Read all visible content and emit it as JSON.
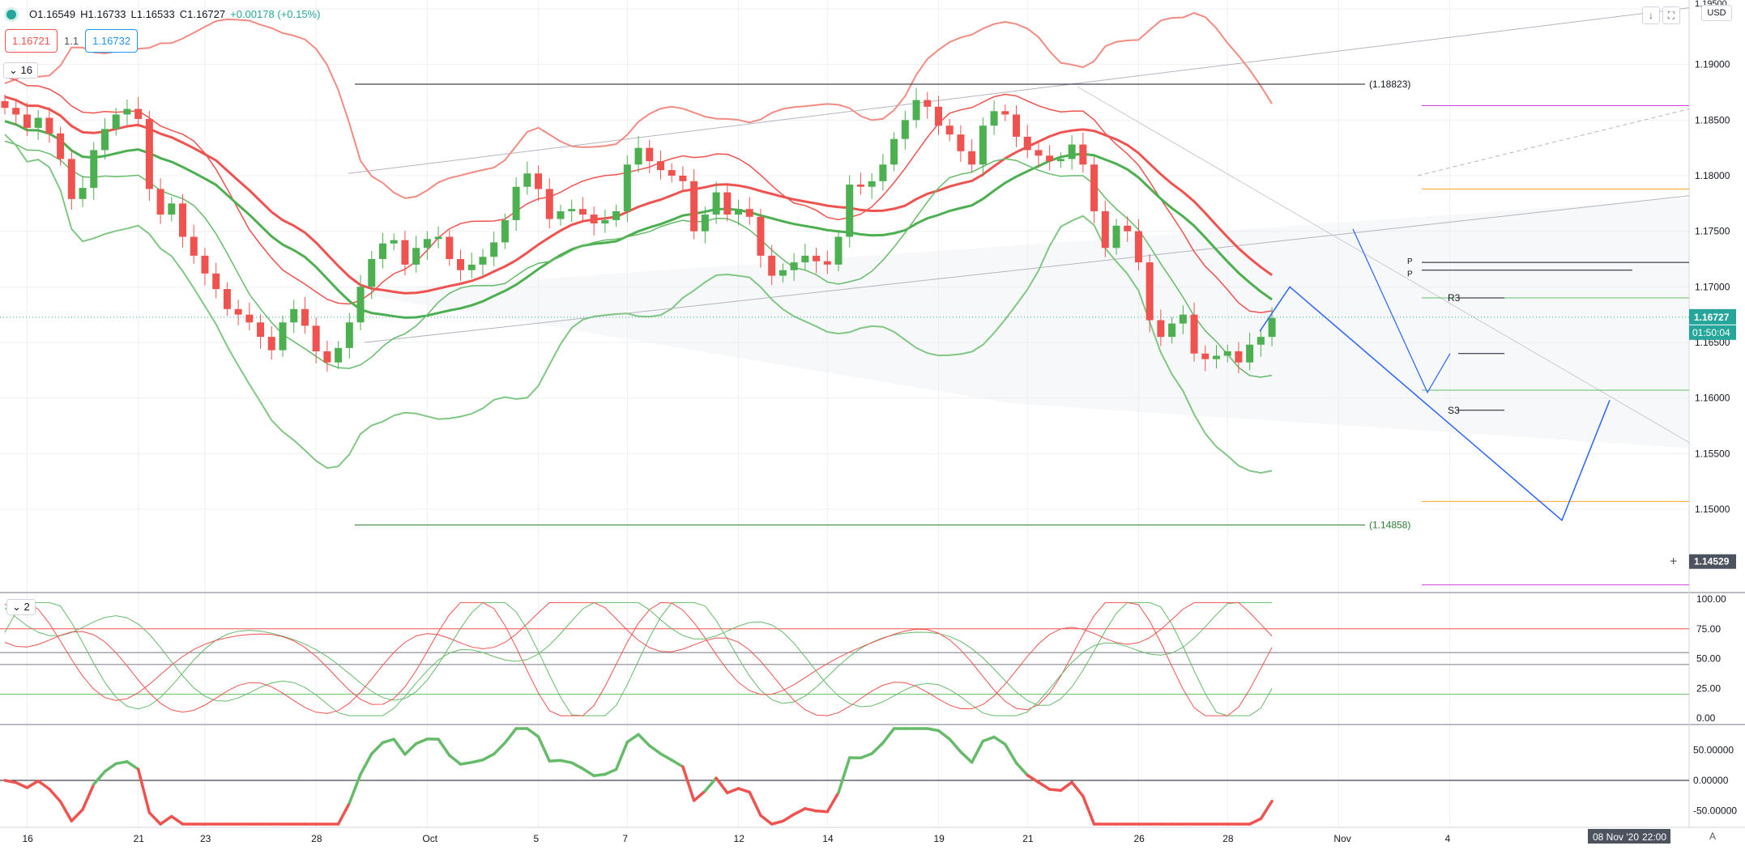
{
  "header": {
    "ohlc_open": "O1.16549",
    "ohlc_high": "H1.16733",
    "ohlc_low": "L1.16533",
    "ohlc_close": "C1.16727",
    "ohlc_change": "+0.00178 (+0.15%)",
    "sell_price": "1.16721",
    "spread": "1.1",
    "buy_price": "1.16732",
    "studies_count": "16",
    "oscillator_count": "2",
    "currency": "USD",
    "auto": "A"
  },
  "chart_data": {
    "type": "line",
    "symbol_quote": "USD",
    "price_axis": {
      "ticks": [
        "1.19500",
        "1.19000",
        "1.18500",
        "1.18000",
        "1.17500",
        "1.17000",
        "1.16500",
        "1.16000",
        "1.15500",
        "1.15000"
      ],
      "tick_values": [
        1.195,
        1.19,
        1.185,
        1.18,
        1.175,
        1.17,
        1.165,
        1.16,
        1.155,
        1.15
      ],
      "ylim": [
        1.1425,
        1.1958
      ]
    },
    "time_axis": {
      "labels": [
        "16",
        "21",
        "23",
        "28",
        "Oct",
        "5",
        "7",
        "12",
        "14",
        "19",
        "21",
        "26",
        "28",
        "Nov",
        "4"
      ],
      "label_bars": [
        2,
        12,
        18,
        28,
        38,
        48,
        56,
        66,
        74,
        84,
        92,
        102,
        110,
        120,
        130
      ]
    },
    "current_price": "1.16727",
    "current_price_value": 1.16727,
    "countdown": "01:50:04",
    "crosshair_price": "1.14529",
    "crosshair_value": 1.14529,
    "date_label": "08 Nov '20",
    "time_label": "22:00",
    "annotations": {
      "level_high": {
        "label": "(1.18823)",
        "value": 1.18823
      },
      "level_low": {
        "label": "(1.14858)",
        "value": 1.14858
      },
      "r3_label": "R3",
      "s3_label": "S3",
      "p_label": "P",
      "pivot_values": {
        "R3": 1.169,
        "P": 1.1712,
        "mid": 1.164,
        "S3": 1.1589
      }
    },
    "candles_close": [
      1.1861,
      1.1855,
      1.1843,
      1.1852,
      1.1838,
      1.1815,
      1.1779,
      1.1789,
      1.1823,
      1.1842,
      1.1855,
      1.186,
      1.1851,
      1.1788,
      1.1765,
      1.1775,
      1.1745,
      1.1728,
      1.1712,
      1.1698,
      1.168,
      1.1675,
      1.1668,
      1.1655,
      1.1643,
      1.1668,
      1.168,
      1.1665,
      1.1642,
      1.1632,
      1.1645,
      1.1668,
      1.17,
      1.1725,
      1.1739,
      1.1742,
      1.172,
      1.1735,
      1.1743,
      1.1745,
      1.1725,
      1.1715,
      1.172,
      1.1727,
      1.174,
      1.176,
      1.179,
      1.1802,
      1.1788,
      1.1761,
      1.1768,
      1.177,
      1.1765,
      1.1757,
      1.176,
      1.1768,
      1.181,
      1.1825,
      1.1813,
      1.1805,
      1.18,
      1.1795,
      1.175,
      1.1765,
      1.1785,
      1.1765,
      1.177,
      1.1763,
      1.1728,
      1.171,
      1.1715,
      1.1722,
      1.1728,
      1.1723,
      1.172,
      1.1745,
      1.1792,
      1.179,
      1.1795,
      1.181,
      1.1833,
      1.185,
      1.1868,
      1.1862,
      1.1845,
      1.1837,
      1.1822,
      1.181,
      1.1845,
      1.1858,
      1.1855,
      1.1835,
      1.1823,
      1.1818,
      1.1813,
      1.1815,
      1.1828,
      1.181,
      1.1768,
      1.1735,
      1.1755,
      1.175,
      1.1722,
      1.167,
      1.1655,
      1.1667,
      1.1675,
      1.164,
      1.1635,
      1.1638,
      1.1642,
      1.1632,
      1.1648,
      1.1655,
      1.1672
    ],
    "candle_colors": {
      "up": "#4caf50",
      "down": "#ef5350"
    },
    "stochastic": {
      "ticks": [
        "100.00",
        "75.00",
        "50.00",
        "25.00",
        "0.00"
      ],
      "levels": [
        75,
        55,
        45,
        20
      ]
    },
    "momentum": {
      "ticks": [
        "50.00000",
        "0.00000",
        "-50.00000"
      ],
      "zero": 0
    }
  }
}
